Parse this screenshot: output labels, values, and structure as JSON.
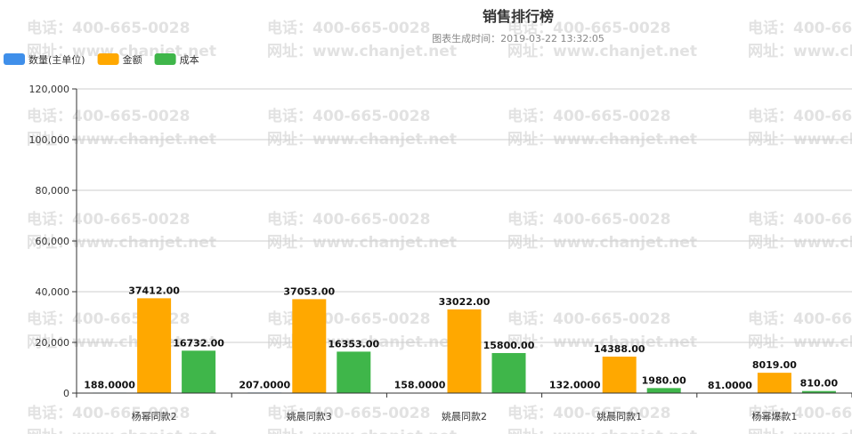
{
  "chart_data": {
    "type": "bar",
    "title": "销售排行榜",
    "subtitle": "图表生成时间：2019-03-22 13:32:05",
    "categories": [
      "杨幂同款2",
      "姚晨同款3",
      "姚晨同款2",
      "姚晨同款1",
      "杨幂爆款1"
    ],
    "series": [
      {
        "name": "数量(主单位)",
        "color": "#3f8fea",
        "values": [
          188,
          207,
          158,
          132,
          81
        ],
        "labels": [
          "188.0000",
          "207.0000",
          "158.0000",
          "132.0000",
          "81.0000"
        ]
      },
      {
        "name": "金额",
        "color": "#ffa800",
        "values": [
          37412,
          37053,
          33022,
          14388,
          8019
        ],
        "labels": [
          "37412.00",
          "37053.00",
          "33022.00",
          "14388.00",
          "8019.00"
        ]
      },
      {
        "name": "成本",
        "color": "#3fb64a",
        "values": [
          16732,
          16353,
          15800,
          1980,
          810
        ],
        "labels": [
          "16732.00",
          "16353.00",
          "15800.00",
          "1980.00",
          "810.00"
        ]
      }
    ],
    "y_ticks": [
      {
        "value": 0,
        "label": "0"
      },
      {
        "value": 20000,
        "label": "20,000"
      },
      {
        "value": 40000,
        "label": "40,000"
      },
      {
        "value": 60000,
        "label": "60,000"
      },
      {
        "value": 80000,
        "label": "80,000"
      },
      {
        "value": 100000,
        "label": "100,000"
      },
      {
        "value": 120000,
        "label": "120,000"
      }
    ],
    "ylim": [
      0,
      120000
    ],
    "grid": true,
    "legend_position": "top-left"
  },
  "watermark": {
    "lines": [
      "电话：400-665-0028",
      "网址：www.chanjet.net"
    ],
    "color": "#e2e2e2"
  }
}
